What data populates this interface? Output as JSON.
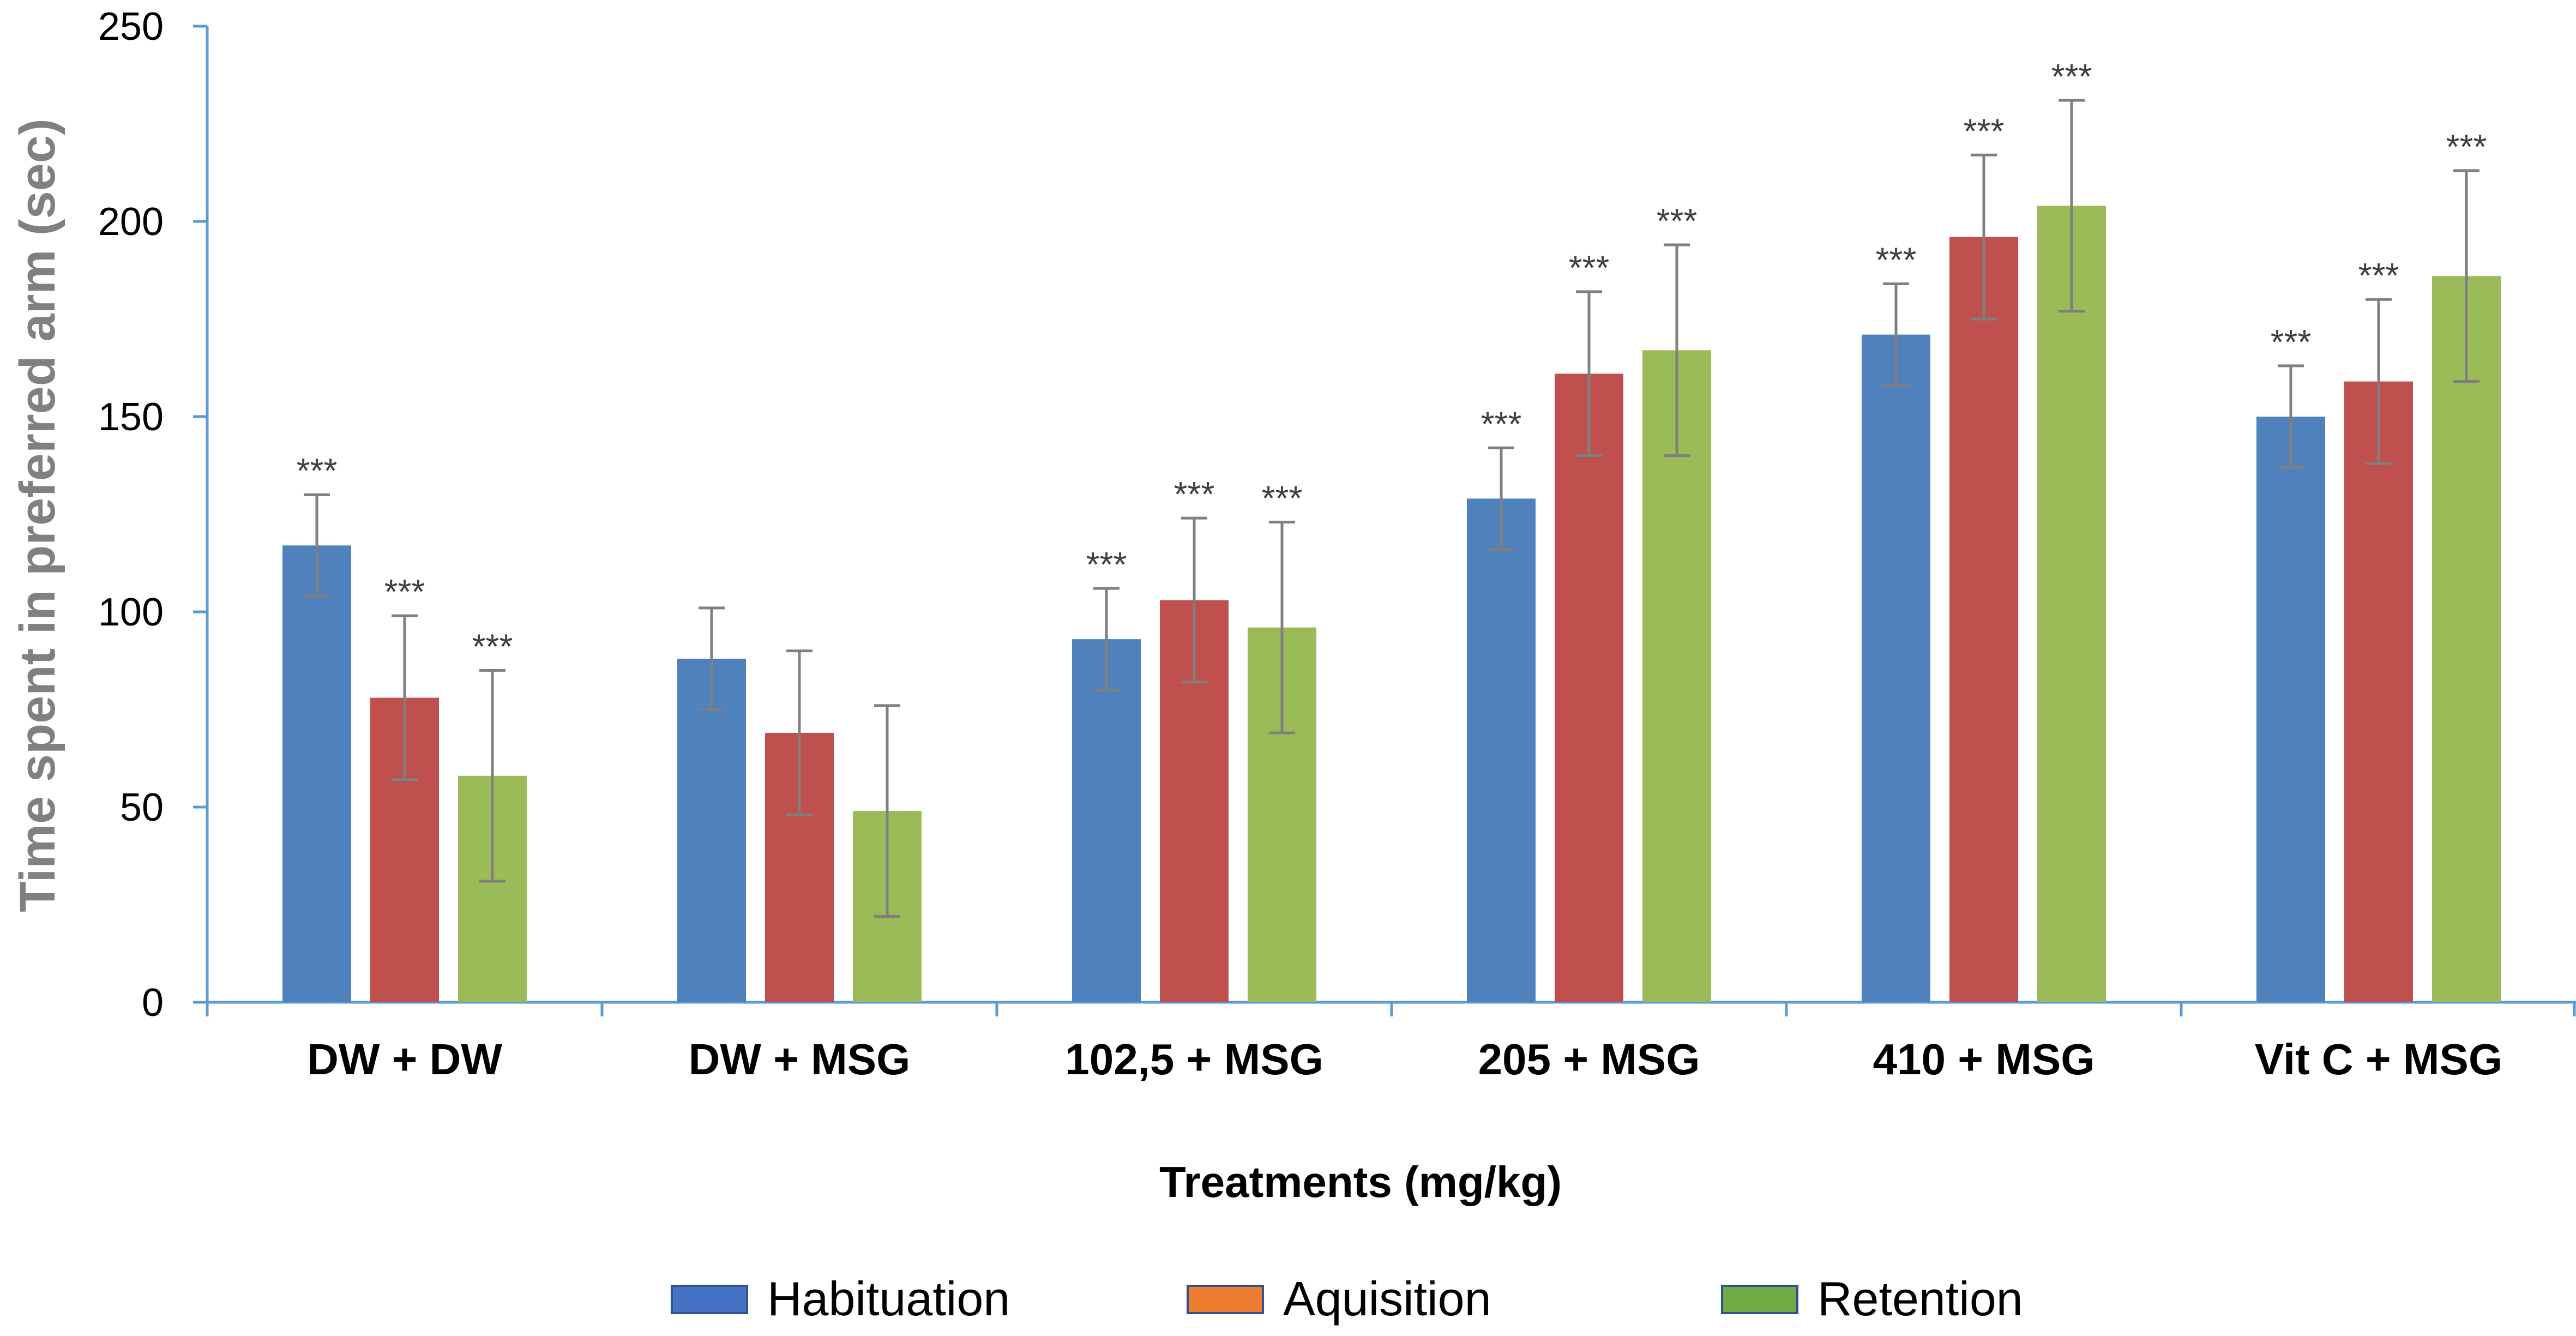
{
  "chart_data": {
    "type": "bar",
    "title": "",
    "xlabel": "Treatments (mg/kg)",
    "ylabel": "Time spent in preferred arm (sec)",
    "ylim": [
      0,
      250
    ],
    "yticks": [
      0,
      50,
      100,
      150,
      200,
      250
    ],
    "categories": [
      "DW + DW",
      "DW + MSG",
      "102,5 + MSG",
      "205 + MSG",
      "410 + MSG",
      "Vit C + MSG"
    ],
    "series": [
      {
        "name": "Habituation",
        "color": "#4f81bd",
        "legend_color": "#4472c4",
        "values": [
          117,
          88,
          93,
          129,
          171,
          150
        ],
        "errors": [
          13,
          13,
          13,
          13,
          13,
          13
        ],
        "significance": [
          "***",
          "",
          "***",
          "***",
          "***",
          "***"
        ]
      },
      {
        "name": "Aquisition",
        "color": "#c0504d",
        "legend_color": "#ed7d31",
        "values": [
          78,
          69,
          103,
          161,
          196,
          159
        ],
        "errors": [
          21,
          21,
          21,
          21,
          21,
          21
        ],
        "significance": [
          "***",
          "",
          "***",
          "***",
          "***",
          "***"
        ]
      },
      {
        "name": "Retention",
        "color": "#9bbb59",
        "legend_color": "#70ad47",
        "values": [
          58,
          49,
          96,
          167,
          204,
          186
        ],
        "errors": [
          27,
          27,
          27,
          27,
          27,
          27
        ],
        "significance": [
          "***",
          "",
          "***",
          "***",
          "***",
          "***"
        ]
      }
    ],
    "grid": false,
    "legend_position": "bottom"
  }
}
